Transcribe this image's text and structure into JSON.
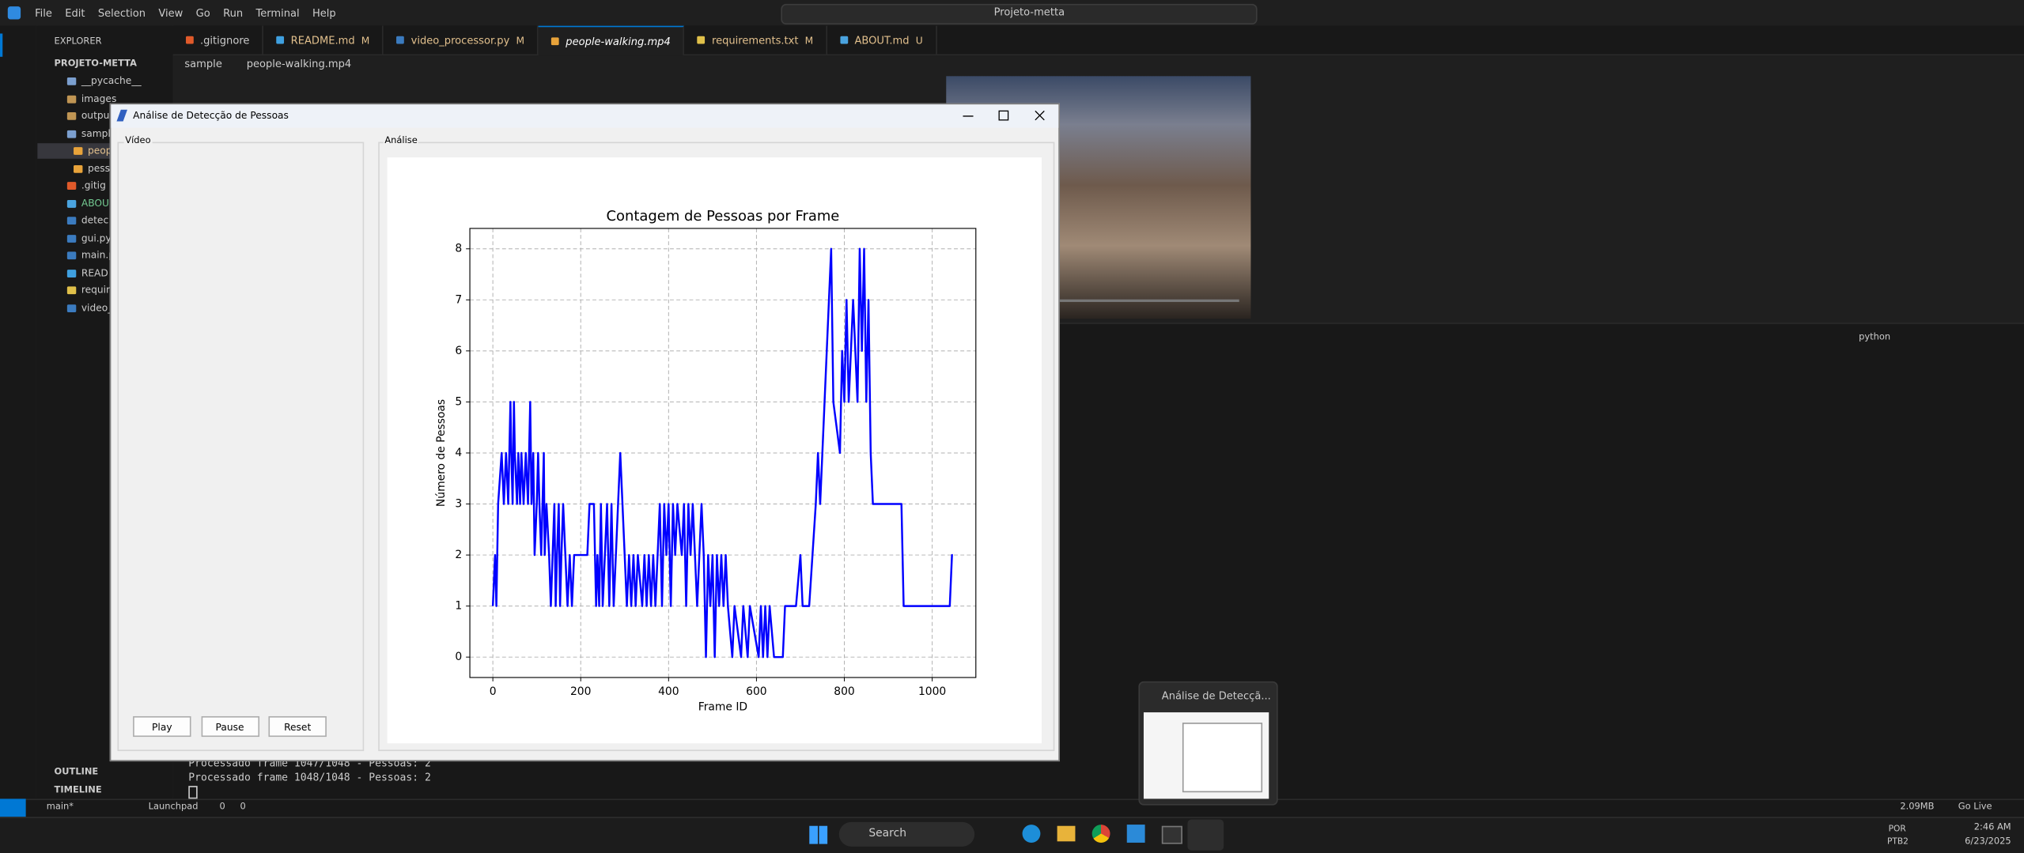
{
  "window_title": "Projeto-metta",
  "menu": [
    "File",
    "Edit",
    "Selection",
    "View",
    "Go",
    "Run",
    "Terminal",
    "Help"
  ],
  "explorer": {
    "title": "EXPLORER",
    "project": "PROJETO-METTA",
    "items": [
      "__pycache__",
      "images",
      "outpu",
      "sampl",
      "peop",
      "pess",
      ".gitig",
      "ABOU",
      "detec",
      "gui.py",
      "main.p",
      "READ",
      "requir",
      "video_"
    ],
    "outline": "OUTLINE",
    "timeline": "TIMELINE"
  },
  "tabs": [
    {
      "label": ".gitignore"
    },
    {
      "label": "README.md",
      "badge": "M"
    },
    {
      "label": "video_processor.py",
      "badge": "M"
    },
    {
      "label": "people-walking.mp4"
    },
    {
      "label": "requirements.txt",
      "badge": "M"
    },
    {
      "label": "ABOUT.md",
      "badge": "U"
    }
  ],
  "breadcrumb": [
    "sample",
    "people-walking.mp4"
  ],
  "terminal": {
    "profile": "python",
    "lines": [
      "Processado frame 1047/1048 - Pessoas: 2",
      "Processado frame 1048/1048 - Pessoas: 2"
    ]
  },
  "status_bar": {
    "branch": "main*",
    "launchpad": "Launchpad",
    "errors": "0",
    "warnings": "0",
    "memory": "2.09MB",
    "live": "Go Live"
  },
  "app_window": {
    "title": "Análise de Detecção de Pessoas",
    "video_label": "Vídeo",
    "analysis_label": "Análise",
    "buttons": [
      "Play",
      "Pause",
      "Reset"
    ]
  },
  "chart_data": {
    "type": "line",
    "title": "Contagem de Pessoas por Frame",
    "xlabel": "Frame ID",
    "ylabel": "Número de Pessoas",
    "color": "#0000ff",
    "grid": true,
    "xlim": [
      -52.35,
      1099.35
    ],
    "ylim": [
      -0.4,
      8.4
    ],
    "xticks": [
      0,
      200,
      400,
      600,
      800,
      1000
    ],
    "yticks": [
      0,
      1,
      2,
      3,
      4,
      5,
      6,
      7,
      8
    ],
    "x": [
      0,
      5,
      8,
      12,
      20,
      25,
      30,
      35,
      40,
      42,
      45,
      48,
      50,
      55,
      58,
      62,
      65,
      70,
      75,
      80,
      85,
      88,
      92,
      95,
      100,
      103,
      106,
      110,
      113,
      116,
      118,
      122,
      128,
      132,
      136,
      140,
      143,
      146,
      150,
      153,
      156,
      160,
      165,
      170,
      175,
      180,
      185,
      215,
      220,
      230,
      235,
      238,
      242,
      246,
      250,
      255,
      260,
      265,
      270,
      275,
      280,
      285,
      290,
      295,
      300,
      305,
      310,
      315,
      320,
      325,
      330,
      340,
      345,
      350,
      355,
      360,
      365,
      370,
      375,
      380,
      385,
      390,
      395,
      400,
      405,
      410,
      415,
      420,
      430,
      435,
      440,
      445,
      450,
      455,
      460,
      465,
      470,
      475,
      480,
      485,
      490,
      495,
      500,
      505,
      510,
      515,
      520,
      525,
      530,
      535,
      545,
      550,
      565,
      570,
      580,
      585,
      605,
      610,
      615,
      620,
      625,
      630,
      640,
      660,
      665,
      690,
      700,
      705,
      720,
      735,
      740,
      745,
      755,
      770,
      775,
      790,
      795,
      800,
      805,
      810,
      815,
      820,
      825,
      830,
      835,
      840,
      845,
      850,
      855,
      860,
      865,
      930,
      935,
      1040,
      1045,
      1047
    ],
    "values": [
      1,
      2,
      1,
      3,
      4,
      3,
      4,
      3,
      5,
      4,
      3,
      5,
      4,
      3,
      4,
      3,
      4,
      3,
      4,
      3,
      5,
      3,
      4,
      2,
      3,
      4,
      3,
      2,
      3,
      4,
      2,
      3,
      2,
      1,
      2,
      3,
      1,
      2,
      3,
      1,
      2,
      3,
      2,
      1,
      2,
      1,
      2,
      2,
      3,
      3,
      1,
      2,
      1,
      3,
      1,
      2,
      3,
      1,
      3,
      1,
      2,
      3,
      4,
      3,
      2,
      1,
      2,
      1,
      2,
      1,
      2,
      1,
      2,
      1,
      2,
      1,
      2,
      1,
      2,
      3,
      1,
      3,
      2,
      3,
      1,
      3,
      2,
      3,
      2,
      3,
      1,
      3,
      2,
      3,
      2,
      1,
      2,
      3,
      2,
      0,
      2,
      1,
      2,
      0,
      2,
      1,
      2,
      1,
      2,
      1,
      0,
      1,
      0,
      1,
      0,
      1,
      0,
      1,
      0,
      1,
      0,
      1,
      0,
      0,
      1,
      1,
      2,
      1,
      1,
      3,
      4,
      3,
      5,
      8,
      5,
      4,
      6,
      5,
      7,
      5,
      6,
      7,
      6,
      5,
      8,
      6,
      8,
      5,
      7,
      4,
      3,
      3,
      1,
      1,
      2,
      2
    ]
  },
  "thumbnail_title": "Análise de Detecçã...",
  "taskbar": {
    "search": "Search",
    "language": "POR",
    "layout": "PTB2",
    "time": "2:46 AM",
    "date": "6/23/2025"
  }
}
